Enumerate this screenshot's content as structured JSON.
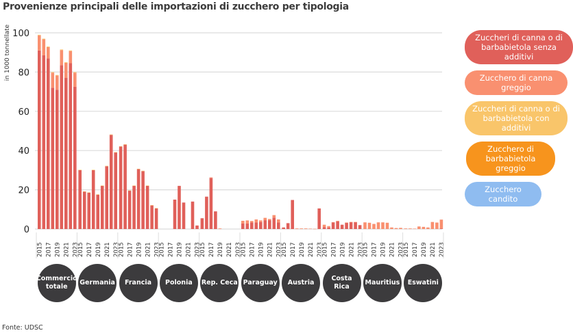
{
  "title": "Provenienze principali delle importazioni di zucchero per tipologia",
  "source": "Fonte: UDSC",
  "chart_data": {
    "type": "bar",
    "stacked": true,
    "title": "Provenienze principali delle importazioni di zucchero per tipologia",
    "ylabel": "in 1000 tonnellate",
    "ylim": [
      0,
      100
    ],
    "yticks": [
      0,
      20,
      40,
      60,
      80,
      100
    ],
    "grid": true,
    "legend_position": "right",
    "years": [
      "2015",
      "2016",
      "2017",
      "2018",
      "2019",
      "2020",
      "2021",
      "2022",
      "2023"
    ],
    "year_labels_shown": [
      "2015",
      "2017",
      "2019",
      "2021",
      "2023"
    ],
    "groups": [
      "Commercio totale",
      "Germania",
      "Francia",
      "Polonia",
      "Rep. Ceca",
      "Paraguay",
      "Austria",
      "Costa Rica",
      "Mauritius",
      "Eswatini"
    ],
    "series": [
      {
        "name": "Zuccheri di canna o di barbabietola senza additivi",
        "color": "#e0605a",
        "values": [
          [
            91,
            88.5,
            87,
            72,
            71,
            83.5,
            77,
            84.5,
            72.5
          ],
          [
            30,
            19,
            18.5,
            30,
            17.5,
            22,
            32,
            48,
            39
          ],
          [
            42,
            43,
            19.5,
            22,
            30.5,
            29.5,
            22,
            12,
            10.5
          ],
          [
            0,
            0,
            0,
            15,
            22,
            13.5,
            0,
            14,
            1.8
          ],
          [
            5.5,
            16.5,
            26,
            9,
            0,
            0,
            0,
            0,
            0
          ],
          [
            2.8,
            2.8,
            3.3,
            3.3,
            3.5,
            4.5,
            4.5,
            5.8,
            3.3
          ],
          [
            0.8,
            3,
            14.8,
            0,
            0,
            0,
            0,
            0,
            10.5
          ],
          [
            1,
            0.8,
            3.3,
            3.9,
            2.2,
            3.2,
            3.5,
            3.5,
            2
          ],
          [
            0,
            0,
            0,
            0,
            0,
            0,
            0,
            0,
            0
          ],
          [
            0,
            0,
            0,
            0,
            0,
            0,
            0,
            0,
            0.3
          ]
        ]
      },
      {
        "name": "Zucchero di canna greggio",
        "color": "#f99070",
        "values": [
          [
            7.7,
            8.2,
            5.7,
            7.7,
            7.2,
            7.7,
            7.7,
            6.2,
            7.2
          ],
          [
            0,
            0,
            0,
            0,
            0,
            0,
            0,
            0,
            0
          ],
          [
            0,
            0,
            0,
            0,
            0,
            0,
            0,
            0,
            0
          ],
          [
            0,
            0,
            0,
            0,
            0,
            0,
            0,
            0,
            0
          ],
          [
            0,
            0,
            0.3,
            0,
            0.3,
            0,
            0,
            0,
            0
          ],
          [
            1.4,
            1.6,
            0.8,
            1.6,
            0.9,
            1.2,
            0.6,
            1.3,
            1.6
          ],
          [
            0,
            0,
            0,
            0.3,
            0.3,
            0.3,
            0.2,
            0.1,
            0
          ],
          [
            1.2,
            0.7,
            0.2,
            0.3,
            0,
            0.1,
            0.1,
            0.1,
            0
          ],
          [
            3.4,
            3.2,
            2.6,
            3.4,
            3.4,
            3.2,
            0.8,
            0.5,
            0.6
          ],
          [
            0.3,
            0.3,
            0.2,
            1.3,
            1.1,
            0.8,
            3.6,
            3.3,
            4.5
          ]
        ]
      },
      {
        "name": "Zuccheri di canna o di barbabietola con additivi",
        "color": "#f9c56a",
        "values": [
          [
            0.3,
            0.3,
            0.3,
            0.3,
            0.3,
            0.3,
            0.3,
            0.3,
            0.3
          ],
          [
            0.2,
            0.2,
            0.2,
            0.2,
            0.2,
            0.2,
            0.2,
            0.2,
            0.2
          ],
          [
            0.2,
            0.2,
            0.2,
            0.2,
            0.2,
            0.2,
            0.2,
            0.2,
            0.2
          ],
          [
            0,
            0,
            0,
            0,
            0,
            0,
            0,
            0,
            0
          ],
          [
            0,
            0,
            0,
            0,
            0,
            0,
            0,
            0,
            0
          ],
          [
            0,
            0,
            0,
            0,
            0,
            0,
            0,
            0,
            0
          ],
          [
            0,
            0,
            0,
            0,
            0,
            0,
            0,
            0,
            0
          ],
          [
            0,
            0,
            0,
            0,
            0,
            0,
            0,
            0,
            0
          ],
          [
            0,
            0,
            0,
            0,
            0,
            0,
            0,
            0,
            0
          ],
          [
            0,
            0,
            0,
            0,
            0,
            0,
            0,
            0,
            0
          ]
        ]
      },
      {
        "name": "Zucchero di barbabietola greggio",
        "color": "#f7941d",
        "values": [
          [
            0,
            0,
            0,
            0,
            0,
            0,
            0,
            0,
            0
          ],
          [
            0,
            0,
            0,
            0,
            0,
            0,
            0,
            0,
            0
          ],
          [
            0,
            0,
            0,
            0,
            0,
            0,
            0,
            0,
            0
          ],
          [
            0,
            0,
            0,
            0,
            0,
            0,
            0,
            0,
            0
          ],
          [
            0,
            0,
            0,
            0,
            0,
            0,
            0,
            0,
            0
          ],
          [
            0,
            0,
            0,
            0,
            0,
            0,
            0,
            0,
            0
          ],
          [
            0,
            0,
            0,
            0,
            0,
            0,
            0,
            0,
            0
          ],
          [
            0,
            0,
            0,
            0,
            0,
            0,
            0,
            0,
            0
          ],
          [
            0,
            0,
            0,
            0,
            0,
            0,
            0,
            0,
            0
          ],
          [
            0,
            0,
            0,
            0,
            0,
            0,
            0,
            0,
            0
          ]
        ]
      },
      {
        "name": "Zucchero candito",
        "color": "#8fbcf0",
        "values": [
          [
            0,
            0,
            0,
            0,
            0,
            0,
            0,
            0,
            0
          ],
          [
            0,
            0,
            0,
            0,
            0,
            0,
            0,
            0,
            0
          ],
          [
            0,
            0,
            0,
            0,
            0,
            0,
            0,
            0,
            0
          ],
          [
            0,
            0,
            0,
            0,
            0,
            0,
            0,
            0,
            0
          ],
          [
            0,
            0,
            0,
            0,
            0,
            0,
            0,
            0,
            0
          ],
          [
            0,
            0,
            0,
            0,
            0,
            0,
            0,
            0,
            0
          ],
          [
            0,
            0,
            0,
            0,
            0,
            0,
            0,
            0,
            0
          ],
          [
            0,
            0,
            0,
            0,
            0,
            0,
            0,
            0,
            0
          ],
          [
            0,
            0,
            0,
            0,
            0,
            0,
            0,
            0,
            0
          ],
          [
            0,
            0,
            0,
            0,
            0,
            0,
            0,
            0,
            0
          ]
        ]
      }
    ]
  }
}
